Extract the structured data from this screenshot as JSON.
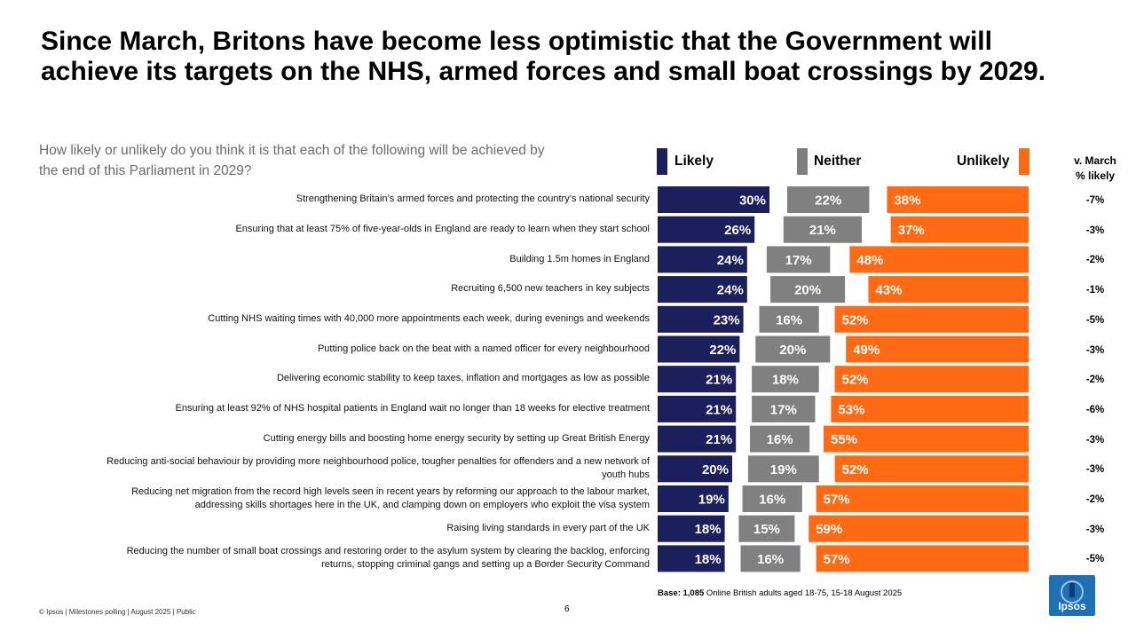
{
  "title": "Since March, Britons have become less optimistic that the Government will achieve its targets on the NHS, armed forces and small boat crossings by 2029.",
  "subtitle": "How likely or unlikely do you think it is that each of the following will be achieved by the end of this Parliament in 2029?",
  "legend": {
    "likely": "Likely",
    "neither": "Neither",
    "unlikely": "Unlikely"
  },
  "vmarch_header": {
    "line1": "v. March",
    "line2": "% likely"
  },
  "colors": {
    "likely": "#1b1f5c",
    "neither": "#808080",
    "unlikely": "#ff6a13",
    "logo": "#1f6fb5"
  },
  "chart_data": {
    "type": "bar",
    "orientation": "horizontal-stacked-diverging",
    "series_names": [
      "Likely",
      "Neither",
      "Unlikely"
    ],
    "categories": [
      "Strengthening Britain’s armed forces and protecting the country’s national security",
      "Ensuring that at least 75% of five-year-olds in England are ready to learn when they start school",
      "Building 1.5m homes in England",
      "Recruiting 6,500 new teachers in key subjects",
      "Cutting NHS waiting times with 40,000 more appointments each week, during evenings and weekends",
      "Putting police back on the beat with a named officer for every neighbourhood",
      "Delivering economic stability to keep taxes, inflation and mortgages as low as possible",
      "Ensuring at least 92% of NHS hospital patients in England wait no longer than 18 weeks for elective treatment",
      "Cutting energy bills and boosting home energy security by setting up Great British Energy",
      "Reducing anti-social behaviour by providing more neighbourhood police, tougher penalties for offenders and a new network of youth hubs",
      "Reducing net migration from the record high levels seen in recent years by reforming our approach to the labour market, addressing skills shortages here in the UK, and clamping down on employers who exploit the visa system",
      "Raising living standards in every part of the UK",
      "Reducing the number of small boat crossings and restoring order to the asylum system by clearing the backlog, enforcing returns, stopping criminal gangs and setting up a Border Security Command"
    ],
    "label_lines": [
      [
        "Strengthening Britain’s armed forces and protecting the country’s national security"
      ],
      [
        "Ensuring that at least 75% of five-year-olds in England are ready to learn when they start school"
      ],
      [
        "Building 1.5m homes in England"
      ],
      [
        "Recruiting 6,500 new teachers in key subjects"
      ],
      [
        "Cutting NHS waiting times with 40,000 more appointments each week, during evenings and weekends"
      ],
      [
        "Putting police back on the beat with a named officer for every neighbourhood"
      ],
      [
        "Delivering economic stability to keep taxes, inflation and mortgages as low as possible"
      ],
      [
        "Ensuring at least 92% of NHS hospital patients in England wait no longer than 18 weeks for elective treatment"
      ],
      [
        "Cutting energy bills and boosting home energy security by setting up Great British Energy"
      ],
      [
        "Reducing anti-social behaviour by providing more neighbourhood police, tougher penalties for offenders and a new network of",
        "youth hubs"
      ],
      [
        "Reducing net migration from the record high levels seen in recent years by reforming our approach to the labour market,",
        "addressing skills shortages here in the UK, and clamping down on employers who exploit the visa system"
      ],
      [
        "Raising living standards in every part of the UK"
      ],
      [
        "Reducing the number of small boat crossings and restoring order to the asylum system by clearing the backlog, enforcing",
        "returns, stopping criminal gangs and setting up a Border Security Command"
      ]
    ],
    "likely": [
      30,
      26,
      24,
      24,
      23,
      22,
      21,
      21,
      21,
      20,
      19,
      18,
      18
    ],
    "neither": [
      22,
      21,
      17,
      20,
      16,
      20,
      18,
      17,
      16,
      19,
      16,
      15,
      16
    ],
    "unlikely": [
      38,
      37,
      48,
      43,
      52,
      49,
      52,
      53,
      55,
      52,
      57,
      59,
      57
    ],
    "v_march": [
      "-7%",
      "-3%",
      "-2%",
      "-1%",
      "-5%",
      "-3%",
      "-2%",
      "-6%",
      "-3%",
      "-3%",
      "-2%",
      "-3%",
      "-5%"
    ],
    "value_suffix": "%",
    "xlim": [
      0,
      100
    ]
  },
  "base_note": {
    "bold": "Base: 1,085",
    "text": " Online British adults aged 18-75, 15-18 August 2025"
  },
  "footer": "© Ipsos | Milestones polling | August 2025 | Public",
  "page_number": "6",
  "logo_text": "Ipsos"
}
